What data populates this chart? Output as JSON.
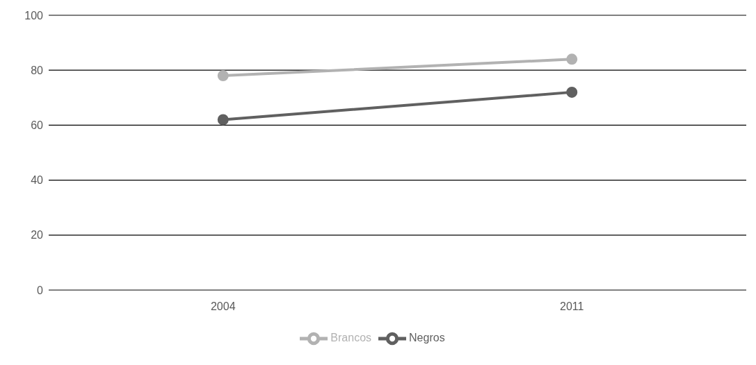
{
  "chart_data": {
    "type": "line",
    "categories": [
      "2004",
      "2011"
    ],
    "series": [
      {
        "name": "Brancos",
        "color": "#b2b2b2",
        "values": [
          78,
          84
        ]
      },
      {
        "name": "Negros",
        "color": "#606060",
        "values": [
          62,
          72
        ]
      }
    ],
    "ylim": [
      0,
      100
    ],
    "yticks": [
      0,
      20,
      40,
      60,
      80,
      100
    ],
    "grid": "y",
    "legend": "bottom",
    "marker": "circle",
    "line_style": "solid"
  }
}
